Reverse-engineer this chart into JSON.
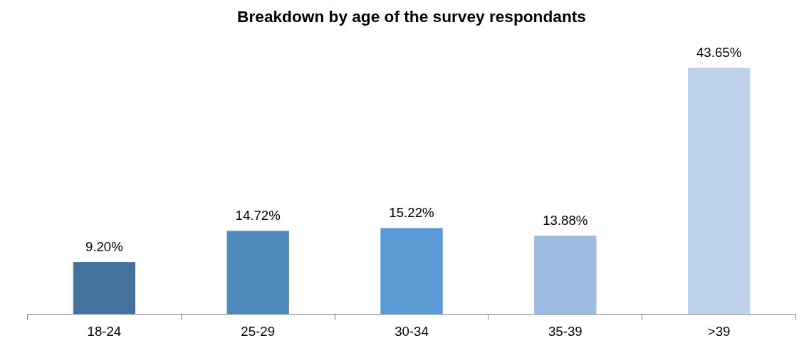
{
  "chart_data": {
    "type": "bar",
    "title": "Breakdown by age of the survey respondants",
    "categories": [
      "18-24",
      "25-29",
      "30-34",
      "35-39",
      ">39"
    ],
    "values": [
      9.2,
      14.72,
      15.22,
      13.88,
      43.65
    ],
    "colors": [
      "#44729d",
      "#4f88bb",
      "#5b9bd5",
      "#9dbbe0",
      "#bdd1ea"
    ],
    "value_labels": [
      "9.20%",
      "14.72%",
      "15.22%",
      "13.88%",
      "43.65%"
    ],
    "grid": false,
    "tick_labels": "x"
  }
}
